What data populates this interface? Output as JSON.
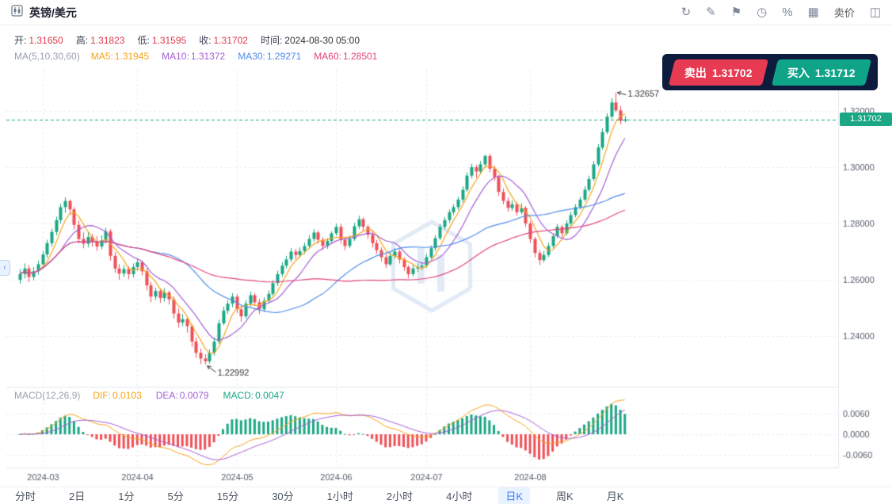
{
  "header": {
    "title": "英镑/美元",
    "sell_price_text": "卖价",
    "icons": [
      {
        "name": "refresh-icon",
        "glyph": "↻"
      },
      {
        "name": "draw-icon",
        "glyph": "✎"
      },
      {
        "name": "flag-icon",
        "glyph": "⚑"
      },
      {
        "name": "history-clock-icon",
        "glyph": "◷"
      },
      {
        "name": "percent-icon",
        "glyph": "%"
      },
      {
        "name": "grid-layout-icon",
        "glyph": "▦"
      },
      {
        "name": "orderbook-panel-icon",
        "glyph": "◫"
      }
    ]
  },
  "ohlc": {
    "open_label": "开:",
    "open": "1.31650",
    "high_label": "高:",
    "high": "1.31823",
    "low_label": "低:",
    "low": "1.31595",
    "close_label": "收:",
    "close": "1.31702",
    "time_label": "时间:",
    "time": "2024-08-30 05:00"
  },
  "ma": {
    "group": "MA(5,10,30,60)",
    "items": [
      {
        "name": "MA5:",
        "value": "1.31945",
        "color": "#f7a31a"
      },
      {
        "name": "MA10:",
        "value": "1.31372",
        "color": "#a55fd5"
      },
      {
        "name": "MA30:",
        "value": "1.29271",
        "color": "#4f8ce8"
      },
      {
        "name": "MA60:",
        "value": "1.28501",
        "color": "#e0447e"
      }
    ]
  },
  "trade": {
    "sell_label": "卖出",
    "sell_price": "1.31702",
    "buy_label": "买入",
    "buy_price": "1.31712"
  },
  "price_marker": "1.31702",
  "macd": {
    "group": "MACD(12,26,9)",
    "dif_label": "DIF:",
    "dif": "0.0103",
    "dif_color": "#f7a31a",
    "dea_label": "DEA:",
    "dea": "0.0079",
    "dea_color": "#a55fd5",
    "macd_label": "MACD:",
    "macd": "0.0047",
    "macd_color": "#1ba784"
  },
  "timeframes": {
    "items": [
      "分时",
      "2日",
      "1分",
      "5分",
      "15分",
      "30分",
      "1小时",
      "2小时",
      "4小时",
      "日K",
      "周K",
      "月K"
    ],
    "selected_index": 9
  },
  "ui_colors": {
    "value_red": "#e0394b",
    "text_dark": "#333333",
    "tab_selected": "#3d7eff",
    "tab_selected_bg": "#e9f2ff",
    "icon_gray": "#7c8798",
    "panel_dark": "#0d1b3d"
  },
  "chart_data": {
    "type": "candlestick",
    "title": "英镑/美元 日K",
    "x_labels": [
      "2024-03",
      "2024-04",
      "2024-05",
      "2024-06",
      "2024-07",
      "2024-08"
    ],
    "month_start_indices": [
      5,
      26,
      48,
      70,
      90,
      113
    ],
    "y_ticks_main": [
      "1.32000",
      "1.30000",
      "1.28000",
      "1.26000",
      "1.24000"
    ],
    "y_tick_values_main": [
      1.32,
      1.3,
      1.28,
      1.26,
      1.24
    ],
    "y_ticks_macd": [
      "0.0060",
      "0.0000",
      "-0.0060"
    ],
    "y_tick_values_macd": [
      0.006,
      0,
      -0.006
    ],
    "current_price": 1.31702,
    "current_price_label": "1.31702",
    "high_annotation": {
      "index": 132,
      "value": 1.32657,
      "label": "1.32657"
    },
    "low_annotation": {
      "index": 41,
      "value": 1.22992,
      "label": "1.22992"
    },
    "ma_periods": [
      5,
      10,
      30,
      60
    ],
    "macd_params": [
      12,
      26,
      9
    ],
    "indicator_values": {
      "ma5": 1.31945,
      "ma10": 1.31372,
      "ma30": 1.29271,
      "ma60": 1.28501,
      "dif": 0.0103,
      "dea": 0.0079,
      "macd": 0.0047
    },
    "colors": {
      "up": "#1ba784",
      "down": "#ef4f57",
      "ma5": "#f7a31a",
      "ma10": "#a55fd5",
      "ma30": "#4f8ce8",
      "ma60": "#e0447e",
      "grid": "#e8ebef",
      "axis_text": "#555e6b",
      "price_line": "#1ba784",
      "sell": "#e63b52",
      "buy": "#0fa388",
      "watermark": "#e2ebf5"
    },
    "candles": [
      [
        1.26,
        1.2638,
        1.2586,
        1.262
      ],
      [
        1.262,
        1.2658,
        1.2605,
        1.264
      ],
      [
        1.264,
        1.2652,
        1.2592,
        1.261
      ],
      [
        1.261,
        1.2645,
        1.2598,
        1.263
      ],
      [
        1.263,
        1.2668,
        1.2618,
        1.2655
      ],
      [
        1.2655,
        1.2702,
        1.2642,
        1.269
      ],
      [
        1.269,
        1.2742,
        1.2678,
        1.273
      ],
      [
        1.273,
        1.2782,
        1.2718,
        1.277
      ],
      [
        1.277,
        1.2824,
        1.2758,
        1.2812
      ],
      [
        1.2812,
        1.287,
        1.28,
        1.2858
      ],
      [
        1.2858,
        1.2893,
        1.2838,
        1.288
      ],
      [
        1.288,
        1.2885,
        1.2832,
        1.285
      ],
      [
        1.285,
        1.2858,
        1.2778,
        1.2795
      ],
      [
        1.2795,
        1.281,
        1.273,
        1.2745
      ],
      [
        1.2745,
        1.2768,
        1.2712,
        1.2728
      ],
      [
        1.2728,
        1.277,
        1.2715,
        1.2752
      ],
      [
        1.2752,
        1.2762,
        1.2718,
        1.2735
      ],
      [
        1.2735,
        1.2755,
        1.2702,
        1.2718
      ],
      [
        1.2718,
        1.2758,
        1.2708,
        1.274
      ],
      [
        1.274,
        1.2785,
        1.2728,
        1.2772
      ],
      [
        1.2772,
        1.278,
        1.2668,
        1.2685
      ],
      [
        1.2685,
        1.2698,
        1.2625,
        1.264
      ],
      [
        1.264,
        1.2655,
        1.26,
        1.2622
      ],
      [
        1.2622,
        1.2652,
        1.261,
        1.2638
      ],
      [
        1.2638,
        1.2648,
        1.2602,
        1.262
      ],
      [
        1.262,
        1.2658,
        1.2608,
        1.2645
      ],
      [
        1.2645,
        1.2675,
        1.2632,
        1.2662
      ],
      [
        1.2662,
        1.2668,
        1.2615,
        1.263
      ],
      [
        1.263,
        1.264,
        1.2562,
        1.258
      ],
      [
        1.258,
        1.2592,
        1.252,
        1.254
      ],
      [
        1.254,
        1.2572,
        1.2528,
        1.256
      ],
      [
        1.256,
        1.2568,
        1.2518,
        1.2535
      ],
      [
        1.2535,
        1.257,
        1.2522,
        1.2555
      ],
      [
        1.2555,
        1.2562,
        1.2512,
        1.253
      ],
      [
        1.253,
        1.254,
        1.2462,
        1.248
      ],
      [
        1.248,
        1.2498,
        1.243,
        1.2448
      ],
      [
        1.2448,
        1.2478,
        1.2435,
        1.246
      ],
      [
        1.246,
        1.2468,
        1.2412,
        1.2435
      ],
      [
        1.2435,
        1.2442,
        1.2362,
        1.238
      ],
      [
        1.238,
        1.2395,
        1.2322,
        1.234
      ],
      [
        1.234,
        1.2355,
        1.23,
        1.232
      ],
      [
        1.232,
        1.2335,
        1.22992,
        1.231
      ],
      [
        1.231,
        1.2352,
        1.2302,
        1.234
      ],
      [
        1.234,
        1.2395,
        1.233,
        1.238
      ],
      [
        1.238,
        1.2458,
        1.2372,
        1.2445
      ],
      [
        1.2445,
        1.2505,
        1.2438,
        1.249
      ],
      [
        1.249,
        1.2528,
        1.2478,
        1.2515
      ],
      [
        1.2515,
        1.2552,
        1.2502,
        1.254
      ],
      [
        1.254,
        1.2548,
        1.2482,
        1.2495
      ],
      [
        1.2495,
        1.2508,
        1.245,
        1.247
      ],
      [
        1.247,
        1.2528,
        1.2462,
        1.2515
      ],
      [
        1.2515,
        1.2558,
        1.2505,
        1.2545
      ],
      [
        1.2545,
        1.2552,
        1.2508,
        1.252
      ],
      [
        1.252,
        1.2532,
        1.2478,
        1.2495
      ],
      [
        1.2495,
        1.2538,
        1.2485,
        1.2525
      ],
      [
        1.2525,
        1.2562,
        1.2515,
        1.255
      ],
      [
        1.255,
        1.2598,
        1.2542,
        1.2588
      ],
      [
        1.2588,
        1.2632,
        1.2578,
        1.262
      ],
      [
        1.262,
        1.2662,
        1.261,
        1.265
      ],
      [
        1.265,
        1.2685,
        1.264,
        1.2672
      ],
      [
        1.2672,
        1.2712,
        1.2662,
        1.27
      ],
      [
        1.27,
        1.271,
        1.2672,
        1.2688
      ],
      [
        1.2688,
        1.2715,
        1.2678,
        1.2702
      ],
      [
        1.2702,
        1.2732,
        1.2692,
        1.272
      ],
      [
        1.272,
        1.2758,
        1.271,
        1.2745
      ],
      [
        1.2745,
        1.278,
        1.2735,
        1.2768
      ],
      [
        1.2768,
        1.2775,
        1.2728,
        1.2742
      ],
      [
        1.2742,
        1.2752,
        1.2705,
        1.272
      ],
      [
        1.272,
        1.2748,
        1.271,
        1.2738
      ],
      [
        1.2738,
        1.2772,
        1.2728,
        1.2765
      ],
      [
        1.2765,
        1.28,
        1.2755,
        1.2788
      ],
      [
        1.2788,
        1.2798,
        1.2728,
        1.2742
      ],
      [
        1.2742,
        1.2752,
        1.2705,
        1.272
      ],
      [
        1.272,
        1.2758,
        1.2712,
        1.2745
      ],
      [
        1.2745,
        1.2802,
        1.2738,
        1.279
      ],
      [
        1.279,
        1.2828,
        1.278,
        1.2815
      ],
      [
        1.2815,
        1.2822,
        1.2772,
        1.2788
      ],
      [
        1.2788,
        1.2795,
        1.2745,
        1.276
      ],
      [
        1.276,
        1.2772,
        1.2715,
        1.273
      ],
      [
        1.273,
        1.2742,
        1.2692,
        1.2705
      ],
      [
        1.2705,
        1.2715,
        1.2665,
        1.268
      ],
      [
        1.268,
        1.2692,
        1.2642,
        1.2655
      ],
      [
        1.2655,
        1.2698,
        1.2648,
        1.2685
      ],
      [
        1.2685,
        1.2712,
        1.2675,
        1.27
      ],
      [
        1.27,
        1.2708,
        1.2658,
        1.2672
      ],
      [
        1.2672,
        1.268,
        1.2632,
        1.2645
      ],
      [
        1.2645,
        1.2652,
        1.2605,
        1.262
      ],
      [
        1.262,
        1.2652,
        1.2612,
        1.264
      ],
      [
        1.264,
        1.2658,
        1.2628,
        1.2645
      ],
      [
        1.2645,
        1.2662,
        1.2635,
        1.265
      ],
      [
        1.265,
        1.2692,
        1.2642,
        1.268
      ],
      [
        1.268,
        1.2722,
        1.2672,
        1.2712
      ],
      [
        1.2712,
        1.2758,
        1.2702,
        1.2748
      ],
      [
        1.2748,
        1.2798,
        1.274,
        1.2788
      ],
      [
        1.2788,
        1.2822,
        1.2778,
        1.2812
      ],
      [
        1.2812,
        1.285,
        1.2802,
        1.284
      ],
      [
        1.284,
        1.2868,
        1.283,
        1.2858
      ],
      [
        1.2858,
        1.2895,
        1.2848,
        1.2885
      ],
      [
        1.2885,
        1.2932,
        1.2875,
        1.292
      ],
      [
        1.292,
        1.2982,
        1.2912,
        1.297
      ],
      [
        1.297,
        1.3012,
        1.296,
        1.3
      ],
      [
        1.3,
        1.3008,
        1.2962,
        1.2985
      ],
      [
        1.2985,
        1.3022,
        1.2975,
        1.301
      ],
      [
        1.301,
        1.3045,
        1.2998,
        1.304
      ],
      [
        1.304,
        1.3048,
        1.2982,
        1.2995
      ],
      [
        1.2995,
        1.3005,
        1.2952,
        1.2965
      ],
      [
        1.2965,
        1.2972,
        1.2898,
        1.2912
      ],
      [
        1.2912,
        1.2925,
        1.2868,
        1.288
      ],
      [
        1.288,
        1.2892,
        1.2842,
        1.2855
      ],
      [
        1.2855,
        1.2882,
        1.2845,
        1.2868
      ],
      [
        1.2868,
        1.2875,
        1.2828,
        1.284
      ],
      [
        1.284,
        1.2872,
        1.2832,
        1.2855
      ],
      [
        1.2855,
        1.2862,
        1.2788,
        1.28
      ],
      [
        1.28,
        1.2808,
        1.273,
        1.2745
      ],
      [
        1.2745,
        1.2752,
        1.268,
        1.2695
      ],
      [
        1.2695,
        1.2705,
        1.2652,
        1.267
      ],
      [
        1.267,
        1.2702,
        1.2662,
        1.2688
      ],
      [
        1.2688,
        1.2732,
        1.268,
        1.272
      ],
      [
        1.272,
        1.2765,
        1.2712,
        1.2755
      ],
      [
        1.2755,
        1.2798,
        1.2748,
        1.2788
      ],
      [
        1.2788,
        1.2795,
        1.2752,
        1.2765
      ],
      [
        1.2765,
        1.2812,
        1.2758,
        1.28
      ],
      [
        1.28,
        1.2842,
        1.2792,
        1.283
      ],
      [
        1.283,
        1.2868,
        1.2822,
        1.2858
      ],
      [
        1.2858,
        1.2895,
        1.285,
        1.2885
      ],
      [
        1.2885,
        1.2932,
        1.2878,
        1.292
      ],
      [
        1.292,
        1.297,
        1.2912,
        1.2958
      ],
      [
        1.2958,
        1.3022,
        1.295,
        1.301
      ],
      [
        1.301,
        1.3082,
        1.3002,
        1.307
      ],
      [
        1.307,
        1.3138,
        1.3062,
        1.3125
      ],
      [
        1.3125,
        1.3192,
        1.3118,
        1.318
      ],
      [
        1.318,
        1.3245,
        1.3172,
        1.323
      ],
      [
        1.323,
        1.32657,
        1.3195,
        1.3202
      ],
      [
        1.3202,
        1.3218,
        1.3152,
        1.3165
      ],
      [
        1.3165,
        1.31823,
        1.31595,
        1.31702
      ]
    ]
  }
}
